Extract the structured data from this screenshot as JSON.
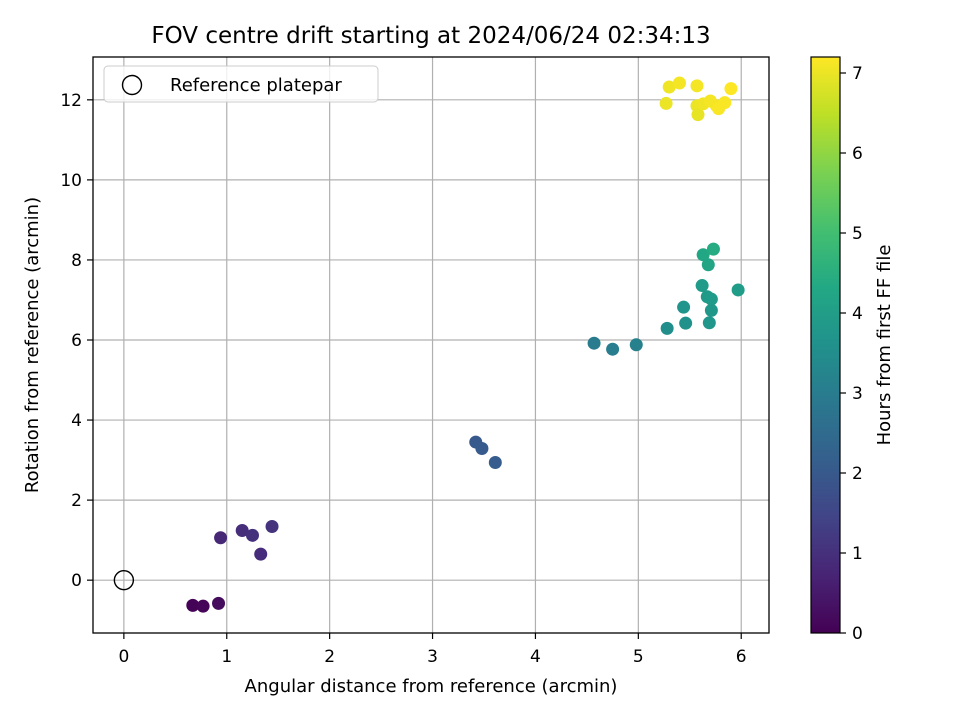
{
  "chart_data": {
    "type": "scatter",
    "title": "FOV centre drift starting at 2024/06/24 02:34:13",
    "xlabel": "Angular distance from reference (arcmin)",
    "ylabel": "Rotation from reference (arcmin)",
    "xlim": [
      -0.3,
      6.27
    ],
    "ylim": [
      -1.32,
      13.07
    ],
    "xticks": [
      0,
      1,
      2,
      3,
      4,
      5,
      6
    ],
    "yticks": [
      0,
      2,
      4,
      6,
      8,
      10,
      12
    ],
    "grid": true,
    "legend": {
      "location": "top-left",
      "entries": [
        "Reference platepar"
      ]
    },
    "reference_point": {
      "label": "Reference platepar",
      "x": 0,
      "y": 0
    },
    "colorbar": {
      "label": "Hours from first FF file",
      "range": [
        0,
        7.2
      ],
      "ticks": [
        0,
        1,
        2,
        3,
        4,
        5,
        6,
        7
      ],
      "colormap": "viridis"
    },
    "points": [
      {
        "x": 0.67,
        "y": -0.63,
        "c": 0.05
      },
      {
        "x": 0.77,
        "y": -0.65,
        "c": 0.1
      },
      {
        "x": 0.92,
        "y": -0.58,
        "c": 0.2
      },
      {
        "x": 0.94,
        "y": 1.06,
        "c": 0.8
      },
      {
        "x": 1.15,
        "y": 1.24,
        "c": 0.95
      },
      {
        "x": 1.25,
        "y": 1.12,
        "c": 1.0
      },
      {
        "x": 1.33,
        "y": 0.65,
        "c": 0.9
      },
      {
        "x": 1.44,
        "y": 1.34,
        "c": 1.05
      },
      {
        "x": 3.42,
        "y": 3.45,
        "c": 2.0
      },
      {
        "x": 3.48,
        "y": 3.29,
        "c": 2.05
      },
      {
        "x": 3.61,
        "y": 2.94,
        "c": 2.1
      },
      {
        "x": 4.57,
        "y": 5.92,
        "c": 3.0
      },
      {
        "x": 4.75,
        "y": 5.77,
        "c": 3.05
      },
      {
        "x": 4.98,
        "y": 5.88,
        "c": 3.15
      },
      {
        "x": 5.28,
        "y": 6.29,
        "c": 3.5
      },
      {
        "x": 5.44,
        "y": 6.82,
        "c": 3.7
      },
      {
        "x": 5.46,
        "y": 6.42,
        "c": 3.6
      },
      {
        "x": 5.62,
        "y": 7.36,
        "c": 3.9
      },
      {
        "x": 5.67,
        "y": 7.08,
        "c": 3.85
      },
      {
        "x": 5.69,
        "y": 6.43,
        "c": 3.75
      },
      {
        "x": 5.71,
        "y": 7.02,
        "c": 3.9
      },
      {
        "x": 5.71,
        "y": 6.74,
        "c": 3.8
      },
      {
        "x": 5.97,
        "y": 7.25,
        "c": 3.95
      },
      {
        "x": 5.63,
        "y": 8.13,
        "c": 4.3
      },
      {
        "x": 5.68,
        "y": 7.88,
        "c": 4.2
      },
      {
        "x": 5.73,
        "y": 8.27,
        "c": 4.4
      },
      {
        "x": 5.27,
        "y": 11.91,
        "c": 7.0
      },
      {
        "x": 5.3,
        "y": 12.32,
        "c": 7.05
      },
      {
        "x": 5.4,
        "y": 12.42,
        "c": 7.1
      },
      {
        "x": 5.57,
        "y": 12.35,
        "c": 7.1
      },
      {
        "x": 5.57,
        "y": 11.85,
        "c": 7.0
      },
      {
        "x": 5.58,
        "y": 11.63,
        "c": 6.95
      },
      {
        "x": 5.63,
        "y": 11.9,
        "c": 7.05
      },
      {
        "x": 5.7,
        "y": 11.97,
        "c": 7.1
      },
      {
        "x": 5.76,
        "y": 11.85,
        "c": 7.1
      },
      {
        "x": 5.78,
        "y": 11.78,
        "c": 7.15
      },
      {
        "x": 5.84,
        "y": 11.93,
        "c": 7.15
      },
      {
        "x": 5.9,
        "y": 12.28,
        "c": 7.2
      }
    ]
  }
}
